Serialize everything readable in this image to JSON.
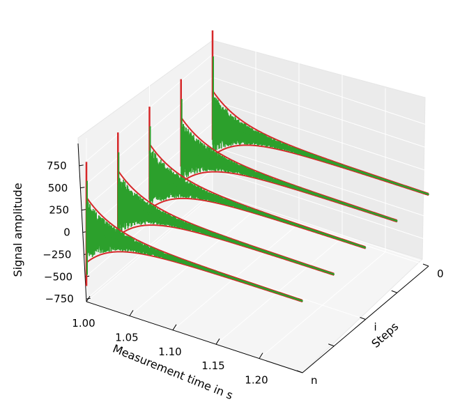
{
  "chart_data": {
    "type": "line",
    "projection": "3d",
    "title": "",
    "xlabel": "Measurement time in s",
    "ylabel": "Steps",
    "zlabel": "Signal amplitude",
    "xlim": [
      1.0,
      1.25
    ],
    "zlim": [
      -780,
      1000
    ],
    "x_ticks": [
      "1.00",
      "1.05",
      "1.10",
      "1.15",
      "1.20"
    ],
    "y_ticks": [
      "0",
      "i",
      "n"
    ],
    "z_ticks": [
      "−750",
      "−500",
      "−250",
      "0",
      "250",
      "500",
      "750"
    ],
    "grid": true,
    "legend": "none",
    "series_colors": {
      "envelope": "#d62728",
      "signal": "#2ca02c"
    },
    "traces": [
      {
        "step": 0,
        "spike_max": 1010,
        "spike_min": -180,
        "decay_end_time": 1.25
      },
      {
        "step": 0.25,
        "spike_max": 770,
        "spike_min": -180,
        "decay_end_time": 1.25
      },
      {
        "step": 0.5,
        "spike_max": 760,
        "spike_min": -250,
        "decay_end_time": 1.25
      },
      {
        "step": 0.75,
        "spike_max": 770,
        "spike_min": -440,
        "decay_end_time": 1.25
      },
      {
        "step": 1,
        "spike_max": 740,
        "spike_min": -610,
        "decay_end_time": 1.25
      }
    ]
  }
}
